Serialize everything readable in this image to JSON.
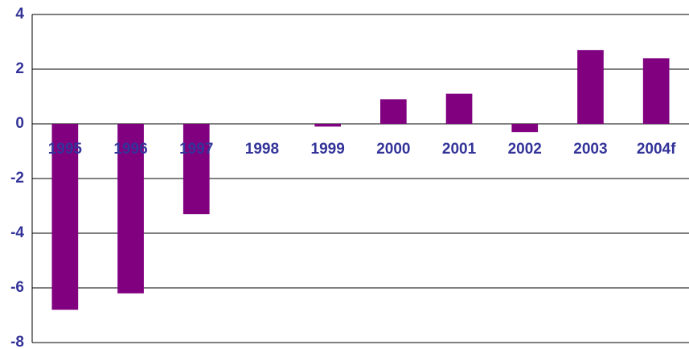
{
  "chart_data": {
    "type": "bar",
    "categories": [
      "1995",
      "1996",
      "1997",
      "1998",
      "1999",
      "2000",
      "2001",
      "2002",
      "2003",
      "2004f"
    ],
    "values": [
      -6.8,
      -6.2,
      -3.3,
      0,
      -0.1,
      0.9,
      1.1,
      -0.3,
      2.7,
      2.4
    ],
    "color": "#800080",
    "ylim": [
      -8,
      4
    ],
    "yticks": [
      -8,
      -6,
      -4,
      -2,
      0,
      2,
      4
    ],
    "grid": true
  }
}
